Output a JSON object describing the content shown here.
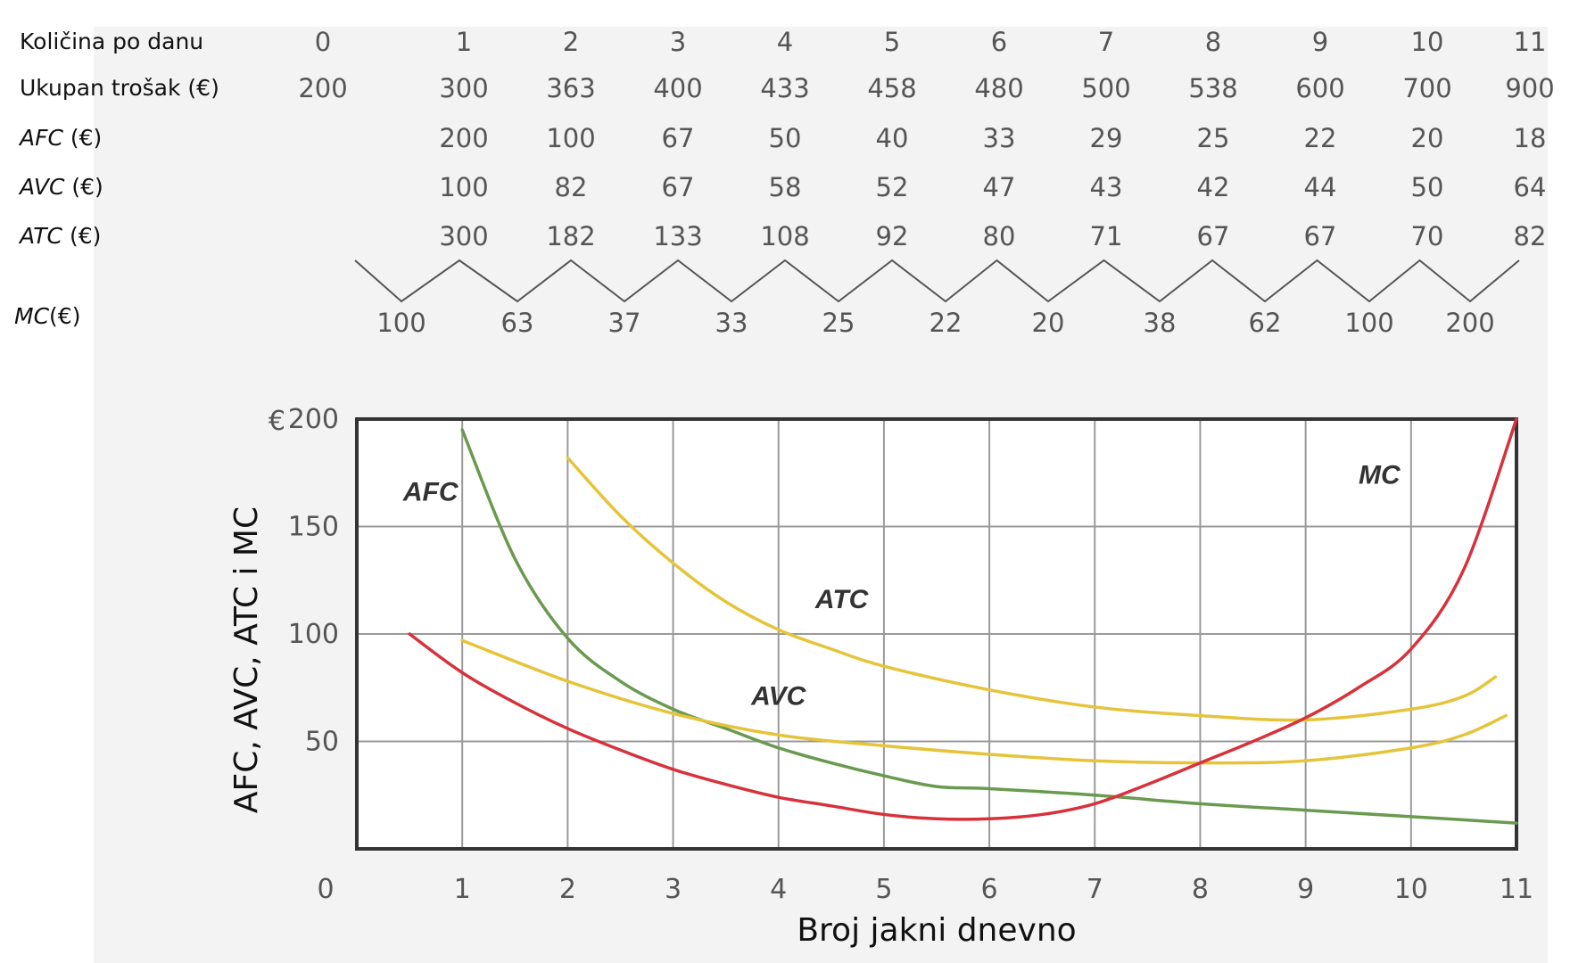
{
  "table": {
    "rows": [
      {
        "label": "Količina po danu",
        "abbr": "",
        "unit": "",
        "values": [
          "0",
          "1",
          "2",
          "3",
          "4",
          "5",
          "6",
          "7",
          "8",
          "9",
          "10",
          "11"
        ]
      },
      {
        "label": "Ukupan trošak (€)",
        "abbr": "",
        "unit": "",
        "values": [
          "200",
          "300",
          "363",
          "400",
          "433",
          "458",
          "480",
          "500",
          "538",
          "600",
          "700",
          "900"
        ]
      },
      {
        "label": "",
        "abbr": "AFC",
        "unit": " (€)",
        "values": [
          "",
          "200",
          "100",
          "67",
          "50",
          "40",
          "33",
          "29",
          "25",
          "22",
          "20",
          "18"
        ]
      },
      {
        "label": "",
        "abbr": "AVC",
        "unit": " (€)",
        "values": [
          "",
          "100",
          "82",
          "67",
          "58",
          "52",
          "47",
          "43",
          "42",
          "44",
          "50",
          "64"
        ]
      },
      {
        "label": "",
        "abbr": "ATC",
        "unit": " (€)",
        "values": [
          "",
          "300",
          "182",
          "133",
          "108",
          "92",
          "80",
          "71",
          "67",
          "67",
          "70",
          "82"
        ]
      }
    ],
    "mc_row": {
      "abbr": "MC",
      "unit": "(€)",
      "values": [
        "100",
        "63",
        "37",
        "33",
        "25",
        "22",
        "20",
        "38",
        "62",
        "100",
        "200"
      ]
    }
  },
  "chart_data": {
    "type": "line",
    "ylabel": "AFC, AVC, ATC i MC",
    "xlabel": "Broj jakni dnevno",
    "y_currency": "€",
    "xlim": [
      0,
      11
    ],
    "ylim": [
      0,
      200
    ],
    "x_ticks": [
      "0",
      "1",
      "2",
      "3",
      "4",
      "5",
      "6",
      "7",
      "8",
      "9",
      "10",
      "11"
    ],
    "y_ticks": [
      "200",
      "150",
      "100",
      "50"
    ],
    "grid": true,
    "series": [
      {
        "name": "AFC",
        "color": "#6a9a4f",
        "x": [
          1,
          1.5,
          2,
          2.5,
          3,
          3.5,
          4,
          4.5,
          5,
          5.5,
          6,
          7,
          8,
          9,
          10,
          11
        ],
        "y": [
          195,
          135,
          98,
          78,
          65,
          56,
          47,
          40,
          34,
          29,
          28,
          25,
          21,
          18,
          15,
          12
        ]
      },
      {
        "name": "ATC",
        "color": "#e5c43a",
        "x": [
          2,
          2.5,
          3,
          3.5,
          4,
          4.5,
          5,
          6,
          7,
          8,
          9,
          10,
          10.5,
          10.8
        ],
        "y": [
          182,
          155,
          133,
          115,
          102,
          93,
          85,
          74,
          66,
          62,
          60,
          65,
          71,
          80
        ]
      },
      {
        "name": "AVC",
        "color": "#e5c43a",
        "x": [
          1,
          2,
          3,
          4,
          5,
          6,
          7,
          8,
          9,
          10,
          10.5,
          10.9
        ],
        "y": [
          97,
          78,
          63,
          53,
          48,
          44,
          41,
          40,
          41,
          47,
          53,
          62
        ]
      },
      {
        "name": "MC",
        "color": "#d7323c",
        "x": [
          0.5,
          1,
          1.5,
          2,
          2.5,
          3,
          3.5,
          4,
          4.5,
          5,
          5.5,
          6,
          6.5,
          7,
          7.5,
          8,
          8.5,
          9,
          9.5,
          10,
          10.5,
          11
        ],
        "y": [
          100,
          82,
          68,
          56,
          46,
          37,
          30,
          24,
          20,
          16,
          14,
          14,
          16,
          21,
          30,
          40,
          50,
          61,
          75,
          93,
          130,
          200
        ]
      }
    ],
    "curve_labels": [
      {
        "text": "AFC",
        "x": 0.7,
        "y": 162
      },
      {
        "text": "ATC",
        "x": 4.6,
        "y": 112
      },
      {
        "text": "AVC",
        "x": 4.0,
        "y": 67
      },
      {
        "text": "MC",
        "x": 9.7,
        "y": 170
      }
    ]
  }
}
